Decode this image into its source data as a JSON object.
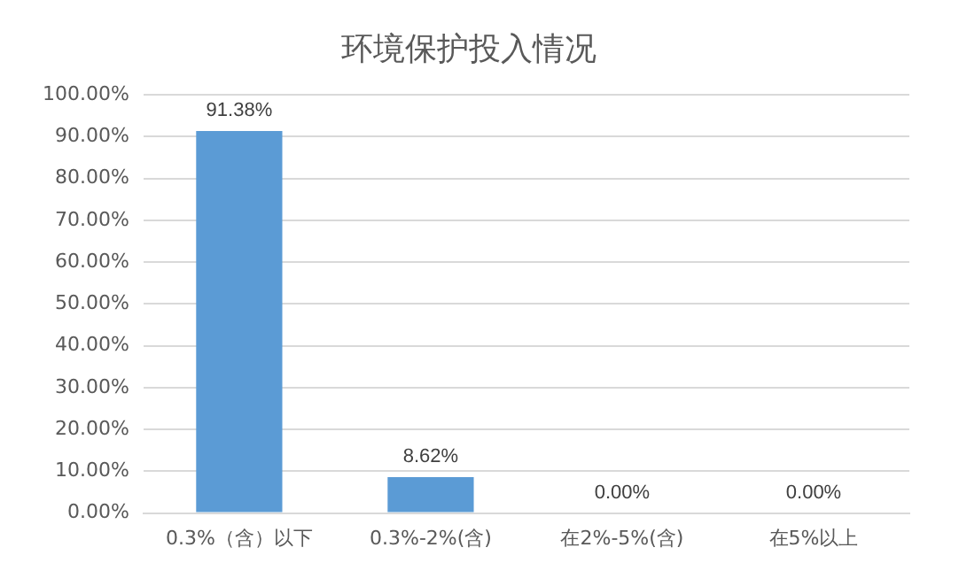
{
  "chart_data": {
    "type": "bar",
    "title": "环境保护投入情况",
    "categories": [
      "0.3%（含）以下",
      "0.3%-2%(含)",
      "在2%-5%(含)",
      "在5%以上"
    ],
    "values": [
      91.38,
      8.62,
      0,
      0
    ],
    "color": "#5b9bd5",
    "value_labels": [
      "91.38%",
      "8.62%",
      "0.00%",
      "0.00%"
    ],
    "ylim": [
      0,
      100
    ],
    "yticks": [
      {
        "value": 0,
        "label": "0.00%"
      },
      {
        "value": 10,
        "label": "10.00%"
      },
      {
        "value": 20,
        "label": "20.00%"
      },
      {
        "value": 30,
        "label": "30.00%"
      },
      {
        "value": 40,
        "label": "40.00%"
      },
      {
        "value": 50,
        "label": "50.00%"
      },
      {
        "value": 60,
        "label": "60.00%"
      },
      {
        "value": 70,
        "label": "70.00%"
      },
      {
        "value": 80,
        "label": "80.00%"
      },
      {
        "value": 90,
        "label": "90.00%"
      },
      {
        "value": 100,
        "label": "100.00%"
      }
    ],
    "grid": "y"
  }
}
